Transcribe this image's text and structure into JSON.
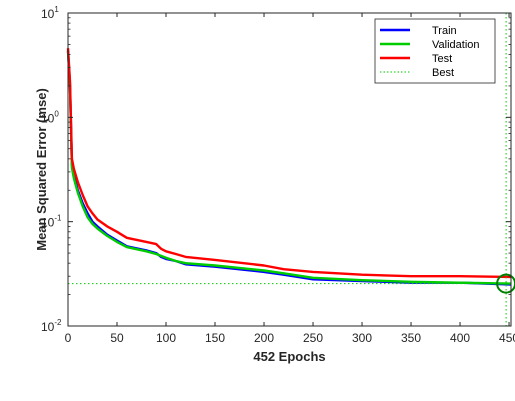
{
  "chart_data": {
    "type": "line",
    "title": "",
    "xlabel": "452 Epochs",
    "ylabel": "Mean Squared Error  (mse)",
    "xlim": [
      0,
      452
    ],
    "ylim": [
      0.01,
      10
    ],
    "y_scale": "log",
    "grid": false,
    "legend_position": "top-right",
    "xticks": [
      "0",
      "50",
      "100",
      "150",
      "200",
      "250",
      "300",
      "350",
      "400",
      "450"
    ],
    "yticks": [
      {
        "value": 10,
        "base": "10",
        "exp": "1"
      },
      {
        "value": 1,
        "base": "10",
        "exp": "0"
      },
      {
        "value": 0.1,
        "base": "10",
        "exp": "-1"
      },
      {
        "value": 0.01,
        "base": "10",
        "exp": "-2"
      }
    ],
    "series": [
      {
        "name": "Train",
        "color": "#0000ff",
        "x": [
          0,
          2,
          4,
          6,
          10,
          15,
          20,
          25,
          30,
          40,
          50,
          60,
          80,
          90,
          95,
          100,
          110,
          120,
          150,
          200,
          220,
          250,
          300,
          350,
          400,
          452
        ],
        "y": [
          4.3,
          2.0,
          0.35,
          0.28,
          0.2,
          0.15,
          0.12,
          0.1,
          0.09,
          0.075,
          0.066,
          0.058,
          0.053,
          0.05,
          0.046,
          0.044,
          0.042,
          0.039,
          0.037,
          0.033,
          0.031,
          0.028,
          0.027,
          0.026,
          0.026,
          0.025
        ]
      },
      {
        "name": "Validation",
        "color": "#00cc00",
        "x": [
          0,
          2,
          4,
          6,
          10,
          15,
          20,
          25,
          30,
          40,
          50,
          60,
          80,
          90,
          95,
          100,
          110,
          120,
          150,
          200,
          220,
          250,
          300,
          350,
          400,
          452
        ],
        "y": [
          4.4,
          2.0,
          0.33,
          0.26,
          0.19,
          0.14,
          0.11,
          0.095,
          0.086,
          0.073,
          0.064,
          0.057,
          0.052,
          0.049,
          0.047,
          0.045,
          0.042,
          0.04,
          0.038,
          0.034,
          0.032,
          0.029,
          0.0275,
          0.0265,
          0.026,
          0.0255
        ]
      },
      {
        "name": "Test",
        "color": "#ff0000",
        "x": [
          0,
          2,
          4,
          6,
          10,
          15,
          20,
          25,
          30,
          40,
          50,
          60,
          80,
          90,
          95,
          100,
          110,
          120,
          150,
          200,
          220,
          250,
          300,
          350,
          400,
          452
        ],
        "y": [
          4.6,
          2.2,
          0.4,
          0.32,
          0.24,
          0.18,
          0.14,
          0.12,
          0.105,
          0.09,
          0.08,
          0.07,
          0.064,
          0.061,
          0.055,
          0.052,
          0.049,
          0.046,
          0.043,
          0.038,
          0.035,
          0.033,
          0.031,
          0.03,
          0.03,
          0.0295
        ]
      }
    ],
    "best": {
      "name": "Best",
      "color": "#00cc00",
      "epoch": 447,
      "value": 0.0255
    }
  }
}
